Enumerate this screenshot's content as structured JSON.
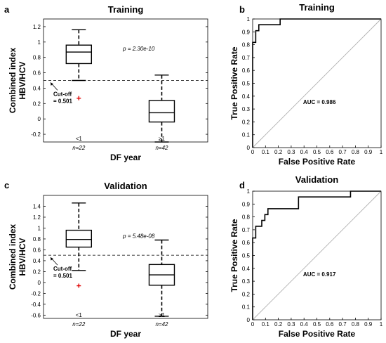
{
  "chart_data": [
    {
      "type": "boxplot",
      "letter": "a",
      "title": "Training",
      "ylabel": [
        "Combined index",
        "HBV/HCV"
      ],
      "xlabel": "DF year",
      "ylim": [
        -0.3,
        1.3
      ],
      "yticks": [
        "-0.2",
        "0",
        "0.2",
        "0.4",
        "0.6",
        "0.8",
        "1",
        "1.2"
      ],
      "categories": [
        {
          "label": "<1",
          "n": "n=22",
          "whisker_low": 0.5,
          "q1": 0.72,
          "median": 0.87,
          "q3": 0.96,
          "whisker_high": 1.16,
          "outliers": [
            0.27
          ]
        },
        {
          "label": "≥1",
          "n": "n=42",
          "whisker_low": -0.3,
          "q1": -0.04,
          "median": 0.08,
          "q3": 0.24,
          "whisker_high": 0.57,
          "outliers": []
        }
      ],
      "cutoff": 0.501,
      "cutoff_label": [
        "Cut-off",
        "= 0.501"
      ],
      "p_value": "p = 2.30e-10"
    },
    {
      "type": "roc",
      "letter": "b",
      "title": "Training",
      "xlabel": "False Positive Rate",
      "ylabel": "True Positive Rate",
      "xlim": [
        0,
        1
      ],
      "ylim": [
        0,
        1
      ],
      "ticks": [
        "0",
        "0.1",
        "0.2",
        "0.3",
        "0.4",
        "0.5",
        "0.6",
        "0.7",
        "0.8",
        "0.9",
        "1"
      ],
      "auc": "AUC = 0.986",
      "roc_x": [
        0,
        0,
        0.024,
        0.024,
        0.048,
        0.048,
        0.214,
        0.214,
        1
      ],
      "roc_y": [
        0,
        0.818,
        0.818,
        0.909,
        0.909,
        0.955,
        0.955,
        1,
        1
      ]
    },
    {
      "type": "boxplot",
      "letter": "c",
      "title": "Validation",
      "ylabel": [
        "Combined index",
        "HBV/HCV"
      ],
      "xlabel": "DF year",
      "ylim": [
        -0.66,
        1.6
      ],
      "yticks": [
        "-0.6",
        "-0.4",
        "-0.2",
        "0",
        "0.2",
        "0.4",
        "0.6",
        "0.8",
        "1",
        "1.2",
        "1.4"
      ],
      "categories": [
        {
          "label": "<1",
          "n": "n=22",
          "whisker_low": 0.22,
          "q1": 0.65,
          "median": 0.79,
          "q3": 0.96,
          "whisker_high": 1.46,
          "outliers": [
            -0.06
          ]
        },
        {
          "label": "≥1",
          "n": "n=42",
          "whisker_low": -0.62,
          "q1": -0.05,
          "median": 0.14,
          "q3": 0.33,
          "whisker_high": 0.78,
          "outliers": []
        }
      ],
      "cutoff": 0.501,
      "cutoff_label": [
        "Cut-off",
        "= 0.501"
      ],
      "p_value": "p = 5.48e-08"
    },
    {
      "type": "roc",
      "letter": "d",
      "title": "Validation",
      "xlabel": "False Positive Rate",
      "ylabel": "True Positive Rate",
      "xlim": [
        0,
        1
      ],
      "ylim": [
        0,
        1
      ],
      "ticks": [
        "0",
        "0.1",
        "0.2",
        "0.3",
        "0.4",
        "0.5",
        "0.6",
        "0.7",
        "0.8",
        "0.9",
        "1"
      ],
      "auc": "AUC = 0.917",
      "roc_x": [
        0,
        0,
        0.024,
        0.024,
        0.071,
        0.071,
        0.095,
        0.095,
        0.119,
        0.119,
        0.143,
        0.143,
        0.357,
        0.357,
        0.762,
        0.762,
        1
      ],
      "roc_y": [
        0,
        0.636,
        0.636,
        0.727,
        0.727,
        0.773,
        0.773,
        0.818,
        0.818,
        0.864,
        0.864,
        0.864,
        0.864,
        0.955,
        0.955,
        1,
        1
      ]
    }
  ]
}
